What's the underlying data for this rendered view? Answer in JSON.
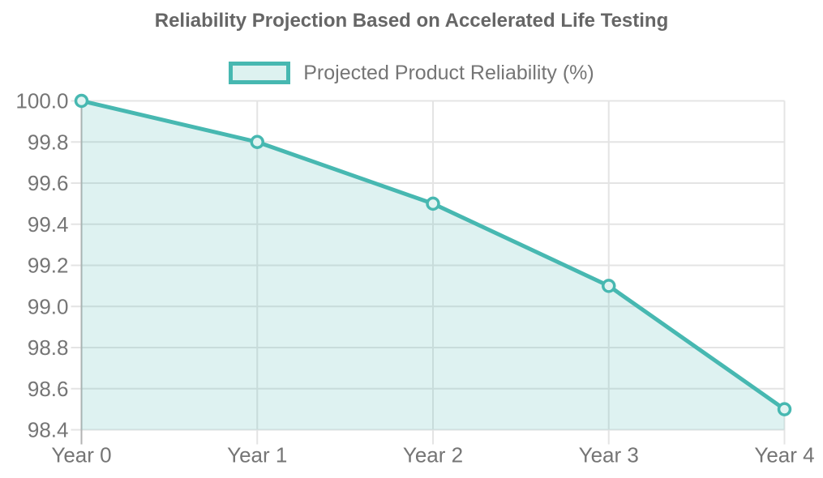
{
  "chart": {
    "legend": {
      "label": "Projected Product Reliability (%)",
      "position": "top-center"
    },
    "colors": {
      "series": "#47b8b1",
      "series_fill_opacity": 0.18,
      "marker_fill": "#e2f4f2",
      "legend_swatch_fill": "#ddf2f0",
      "title_text": "#666666",
      "axis_text": "#757575",
      "gridline": "#e4e4e4",
      "axis_baseline": "#b3b3b3",
      "background": "#ffffff"
    }
  },
  "chart_data": {
    "type": "area",
    "title": "Reliability Projection Based on Accelerated Life Testing",
    "categories": [
      "Year 0",
      "Year 1",
      "Year 2",
      "Year 3",
      "Year 4"
    ],
    "series": [
      {
        "name": "Projected Product Reliability (%)",
        "values": [
          100.0,
          99.8,
          99.5,
          99.1,
          98.5
        ]
      }
    ],
    "xlabel": "",
    "ylabel": "",
    "ylim": [
      98.4,
      100.0
    ],
    "ytick_step": 0.2,
    "ytick_labels": [
      "100.0",
      "99.8",
      "99.6",
      "99.4",
      "99.2",
      "99.0",
      "98.8",
      "98.6",
      "98.4"
    ],
    "grid": true,
    "markers": true,
    "legend_position": "top"
  }
}
